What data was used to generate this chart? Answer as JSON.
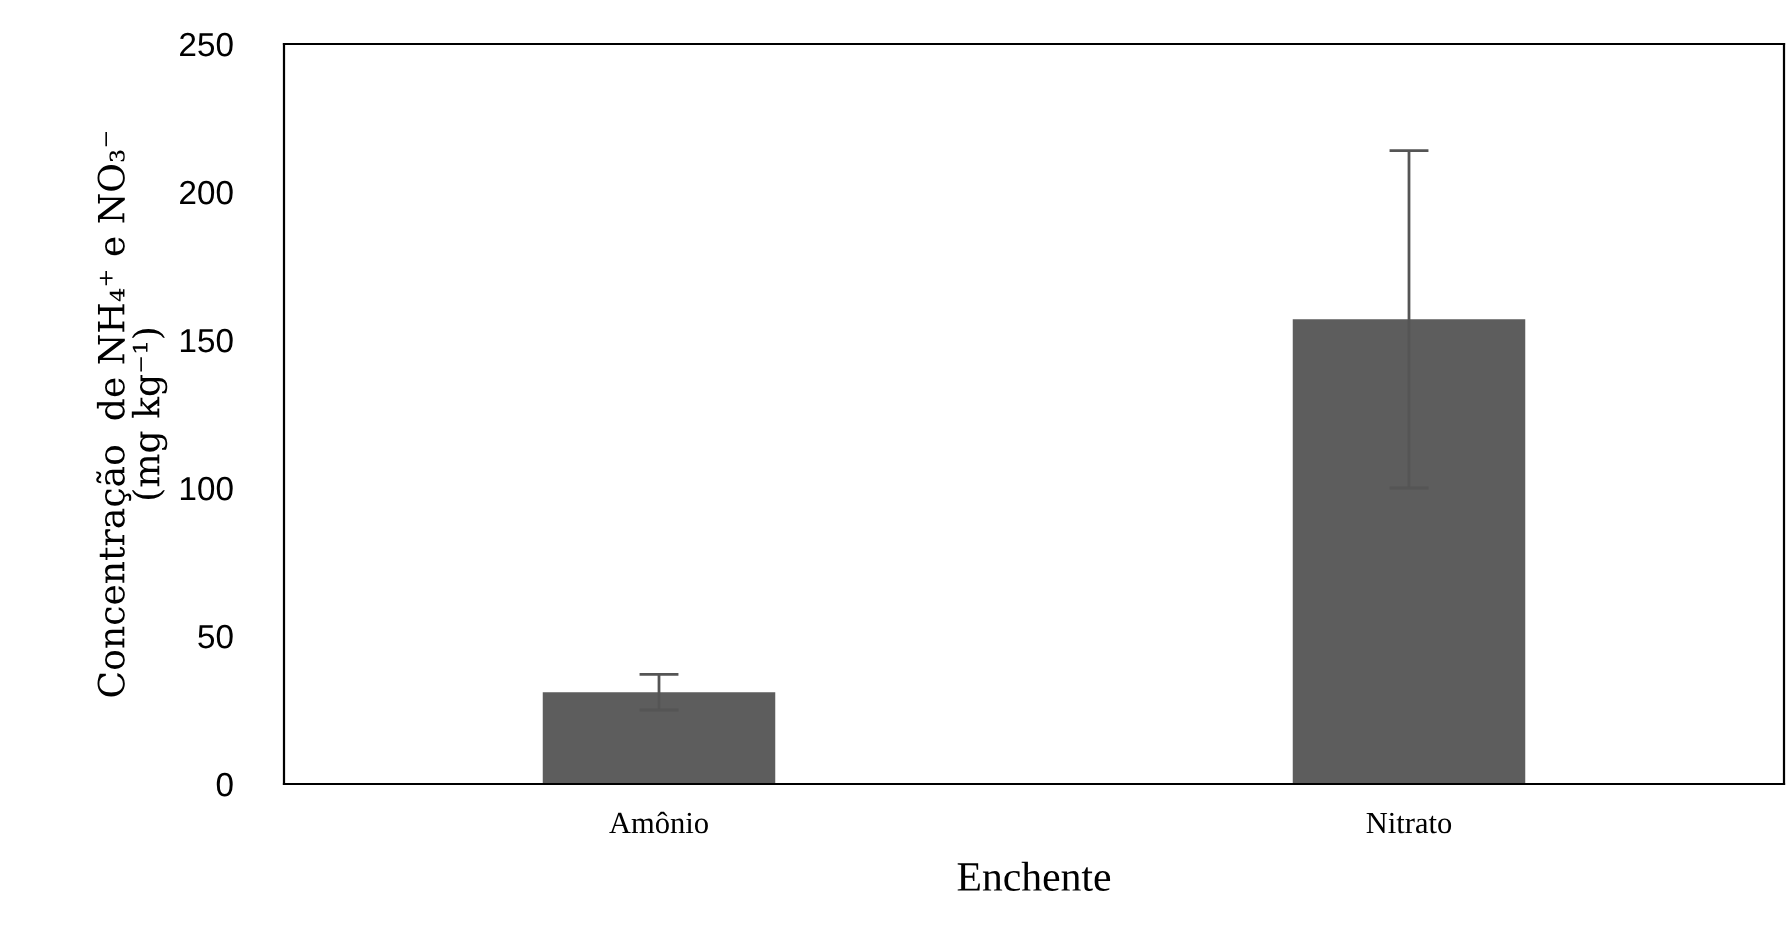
{
  "chart_data": {
    "type": "bar",
    "xlabel": "Enchente",
    "ylabel": "Concentração  de NH₄⁺ e NO₃⁻\n(mg kg⁻¹)",
    "categories": [
      "Amônio",
      "Nitrato"
    ],
    "values": [
      31,
      157
    ],
    "errors": [
      6,
      57
    ],
    "color": "#5d5d5d",
    "ylim": [
      0,
      250
    ],
    "yticks": [
      0,
      50,
      100,
      150,
      200,
      250
    ],
    "grid": false,
    "legend": false
  }
}
